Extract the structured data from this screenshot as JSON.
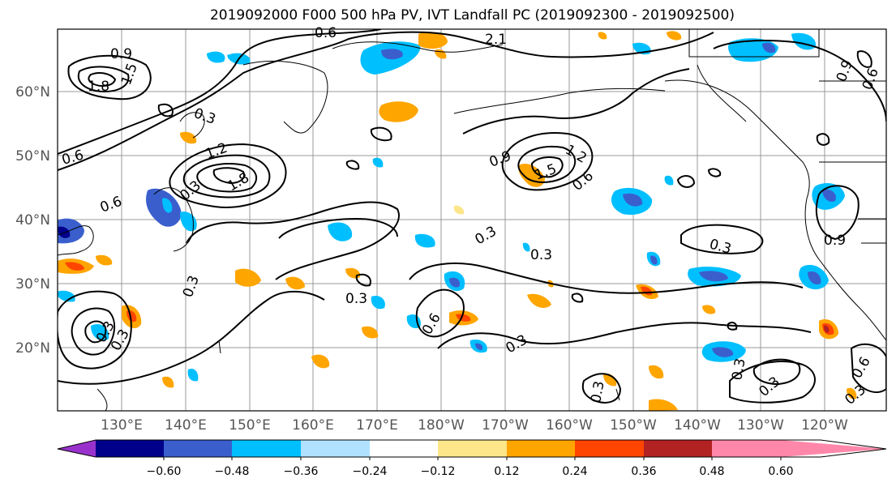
{
  "title": "2019092000 F000 500 hPa PV, IVT Landfall PC (2019092300 - 2019092500)",
  "map": {
    "lat_labels": [
      "60°N",
      "50°N",
      "40°N",
      "30°N",
      "20°N"
    ],
    "lon_labels": [
      "130°E",
      "140°E",
      "150°E",
      "160°E",
      "170°E",
      "180°W",
      "170°W",
      "160°W",
      "150°W",
      "140°W",
      "130°W",
      "120°W"
    ],
    "contour_labels": [
      {
        "text": "0.9"
      },
      {
        "text": "1.5"
      },
      {
        "text": "1.8"
      },
      {
        "text": "0.6"
      },
      {
        "text": "2.1"
      },
      {
        "text": "0.3"
      },
      {
        "text": "1.2"
      },
      {
        "text": "1.8"
      },
      {
        "text": "0.6"
      },
      {
        "text": "0.6"
      },
      {
        "text": "0.9"
      },
      {
        "text": "1.2"
      },
      {
        "text": "1.5"
      },
      {
        "text": "0.6"
      },
      {
        "text": "0.9"
      },
      {
        "text": "0.6"
      },
      {
        "text": "0.3"
      },
      {
        "text": "0.3"
      },
      {
        "text": "0.3"
      },
      {
        "text": "0.3"
      },
      {
        "text": "0.3"
      },
      {
        "text": "0.9"
      },
      {
        "text": "0.3"
      },
      {
        "text": "0.6"
      },
      {
        "text": "0.3"
      },
      {
        "text": "0.3"
      },
      {
        "text": "0.3"
      },
      {
        "text": "0.3"
      },
      {
        "text": "0.6"
      },
      {
        "text": "0.3"
      },
      {
        "text": "0.3"
      },
      {
        "text": "0.3"
      }
    ]
  },
  "colorbar": {
    "ticks": [
      "−0.60",
      "−0.48",
      "−0.36",
      "−0.24",
      "−0.12",
      "0.12",
      "0.24",
      "0.36",
      "0.48",
      "0.60"
    ],
    "colors": [
      "#9932cc",
      "#00008b",
      "#3a5fcd",
      "#00bfff",
      "#b0e2ff",
      "#ffffff",
      "#fde68a",
      "#ffa500",
      "#ff4500",
      "#b22222",
      "#ff88aa"
    ]
  }
}
